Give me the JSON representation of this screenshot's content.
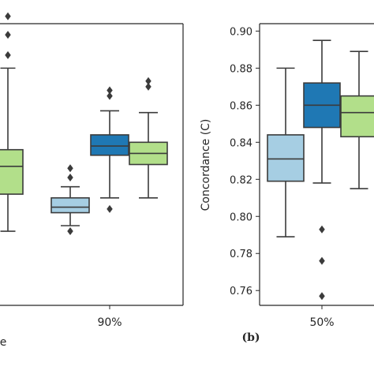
{
  "colors": {
    "light_blue": "#a6cee3",
    "dark_blue": "#1f78b4",
    "light_green": "#b2df8a",
    "edge": "#3b3b3b"
  },
  "chart_data": [
    {
      "type": "box",
      "panel": "a",
      "panel_label": "",
      "xlabel": "e",
      "categories": [
        "90%"
      ],
      "visible_ticks_labeled": false,
      "series": [
        {
          "color": "light_green",
          "boxes": [
            {
              "category": "left-partial",
              "whislo": 0.792,
              "q1": 0.812,
              "med": 0.827,
              "q3": 0.836,
              "whishi": 0.88,
              "fliers": [
                0.908,
                0.898,
                0.887
              ]
            }
          ]
        },
        {
          "color": "light_blue",
          "boxes": [
            {
              "category": "90%",
              "whislo": 0.795,
              "q1": 0.802,
              "med": 0.805,
              "q3": 0.81,
              "whishi": 0.816,
              "fliers": [
                0.826,
                0.821,
                0.792
              ]
            }
          ]
        },
        {
          "color": "dark_blue",
          "boxes": [
            {
              "category": "90%",
              "whislo": 0.81,
              "q1": 0.833,
              "med": 0.838,
              "q3": 0.844,
              "whishi": 0.857,
              "fliers": [
                0.868,
                0.865,
                0.804
              ]
            }
          ]
        },
        {
          "color": "light_green",
          "boxes": [
            {
              "category": "90%",
              "whislo": 0.81,
              "q1": 0.828,
              "med": 0.834,
              "q3": 0.84,
              "whishi": 0.856,
              "fliers": [
                0.873,
                0.87
              ]
            }
          ]
        }
      ]
    },
    {
      "type": "box",
      "panel": "b",
      "panel_label": "(b)",
      "ylabel": "Concordance (C)",
      "categories": [
        "50%"
      ],
      "ylim": [
        0.752,
        0.904
      ],
      "yticks": [
        "0.76",
        "0.78",
        "0.80",
        "0.82",
        "0.84",
        "0.86",
        "0.88",
        "0.90"
      ],
      "series": [
        {
          "color": "light_blue",
          "boxes": [
            {
              "category": "50%",
              "whislo": 0.789,
              "q1": 0.819,
              "med": 0.831,
              "q3": 0.844,
              "whishi": 0.88,
              "fliers": []
            }
          ]
        },
        {
          "color": "dark_blue",
          "boxes": [
            {
              "category": "50%",
              "whislo": 0.818,
              "q1": 0.848,
              "med": 0.86,
              "q3": 0.872,
              "whishi": 0.895,
              "fliers": [
                0.793,
                0.776,
                0.757
              ]
            }
          ]
        },
        {
          "color": "light_green",
          "boxes": [
            {
              "category": "50%",
              "whislo": 0.815,
              "q1": 0.843,
              "med": 0.856,
              "q3": 0.865,
              "whishi": 0.889,
              "fliers": []
            }
          ]
        }
      ]
    }
  ]
}
